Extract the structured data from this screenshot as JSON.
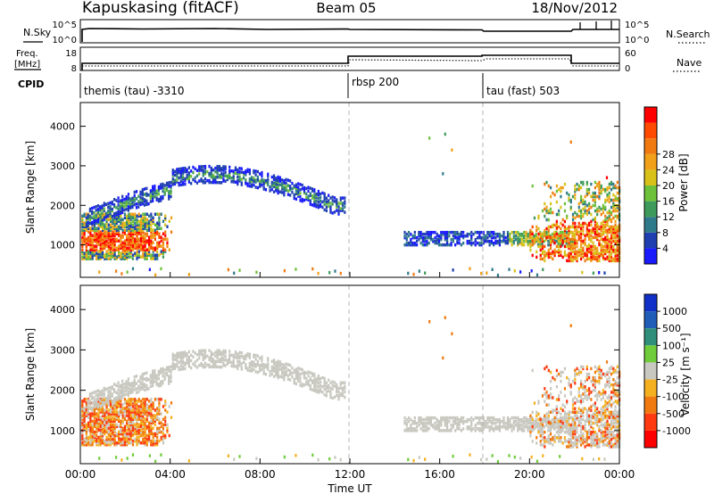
{
  "header": {
    "station": "Kapuskasing (fitACF)",
    "beam": "Beam 05",
    "date": "18/Nov/2012"
  },
  "param_panels": {
    "nsky": {
      "label": "N.Sky",
      "tick_top": "10^5",
      "tick_bottom": "10^0"
    },
    "nsearch": {
      "label": "N.Search",
      "tick_top": "10^5",
      "tick_bottom": "10^0"
    },
    "freq": {
      "label_line1": "Freq.",
      "label_line2": "[MHz]",
      "tick_top": "18",
      "tick_bottom": "8"
    },
    "nave": {
      "label": "Nave",
      "tick_top": "60",
      "tick_bottom": "0"
    },
    "cpid": {
      "label": "CPID"
    }
  },
  "modes": [
    {
      "name": "themis (tau) -3310",
      "start_hour": 0
    },
    {
      "name": "rbsp 200",
      "start_hour": 12
    },
    {
      "name": "tau (fast) 503",
      "start_hour": 18
    }
  ],
  "xaxis": {
    "label": "Time UT",
    "range_hours": [
      0,
      24
    ],
    "ticks": [
      "00:00",
      "04:00",
      "08:00",
      "12:00",
      "16:00",
      "20:00",
      "00:00"
    ]
  },
  "power_panel": {
    "ylabel": "Slant Range [km]",
    "yticks": [
      "1000",
      "2000",
      "3000",
      "4000"
    ],
    "colorbar_label": "Power [dB]",
    "colorbar_ticks": [
      "4",
      "8",
      "12",
      "16",
      "20",
      "24",
      "28"
    ],
    "colors": [
      "#1a1aff",
      "#1f3fb0",
      "#2f7a8a",
      "#3e9a5a",
      "#6ec13a",
      "#d8c21a",
      "#f0a019",
      "#f07a10",
      "#ff4a00",
      "#ff0000"
    ]
  },
  "velocity_panel": {
    "ylabel": "Slant Range [km]",
    "yticks": [
      "1000",
      "2000",
      "3000",
      "4000"
    ],
    "colorbar_label": "Velocity [m s⁻¹]",
    "colorbar_ticks": [
      "1000",
      "500",
      "100",
      "25",
      "-25",
      "-100",
      "-500",
      "-1000"
    ],
    "colors": [
      "#1030c8",
      "#1f5db8",
      "#2f8f7a",
      "#6fcc3a",
      "#c8c8c0",
      "#f5b020",
      "#f07a10",
      "#ff3a10",
      "#ff0000"
    ],
    "ground_scatter_color": "#c8c8c0"
  },
  "chart_data": {
    "type": "heatmap",
    "x_range_hours": [
      0,
      24
    ],
    "y_range_km": [
      180,
      4600
    ],
    "series": [
      {
        "name": "Power",
        "unit": "dB",
        "range": [
          0,
          30
        ]
      },
      {
        "name": "Velocity",
        "unit": "m s⁻¹",
        "range": [
          -1000,
          1000
        ]
      }
    ],
    "echo_bands_km": [
      {
        "hours": [
          0,
          4
        ],
        "range_km": [
          700,
          1600
        ],
        "power_db": 22,
        "velocity": -400
      },
      {
        "hours": [
          1,
          11.5
        ],
        "range_km": [
          1700,
          2900
        ],
        "power_db": 6,
        "velocity": 0
      },
      {
        "hours": [
          14.5,
          22
        ],
        "range_km": [
          1000,
          1300
        ],
        "power_db": 8,
        "velocity": 0
      },
      {
        "hours": [
          20,
          24
        ],
        "range_km": [
          600,
          2500
        ],
        "power_db": 18,
        "velocity": -200
      }
    ],
    "frequency_mhz": [
      {
        "hours": [
          0,
          12
        ],
        "value": 10
      },
      {
        "hours": [
          12,
          24
        ],
        "value": 13
      }
    ],
    "nave": [
      {
        "hours": [
          0,
          12
        ],
        "value": 10
      },
      {
        "hours": [
          12,
          18
        ],
        "value": 45
      },
      {
        "hours": [
          18,
          22
        ],
        "value": 50
      },
      {
        "hours": [
          22,
          24
        ],
        "value": 10
      }
    ],
    "grid": false
  }
}
